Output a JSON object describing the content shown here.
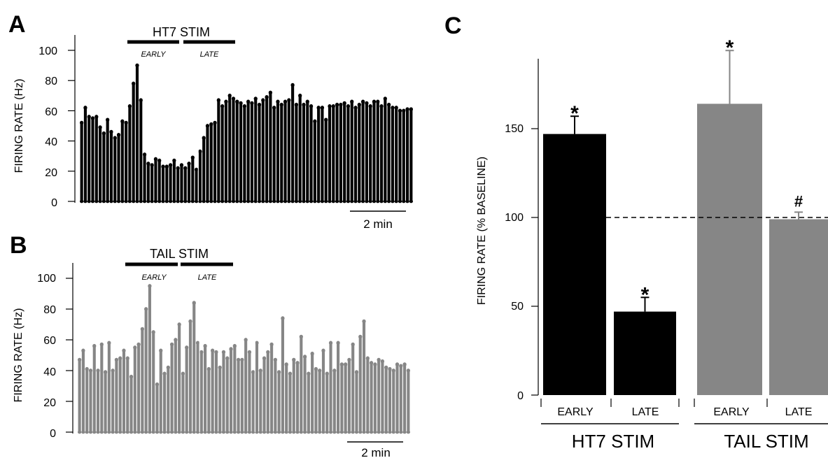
{
  "colors": {
    "ht7": "#000000",
    "tail": "#868686",
    "axis": "#000000",
    "errorbar": "#000000"
  },
  "chart_data": [
    {
      "id": "A",
      "panel_label": "A",
      "type": "bar",
      "stim_label": "HT7 STIM",
      "phase_labels": [
        "EARLY",
        "LATE"
      ],
      "ylabel": "FIRING RATE (Hz)",
      "ylim": [
        0,
        100
      ],
      "yticks": [
        "0",
        "20",
        "40",
        "60",
        "80",
        "100"
      ],
      "scalebar_label": "2 min",
      "dividers_after_bin": [
        32,
        48
      ],
      "color": "#000000",
      "values": [
        52,
        62,
        56,
        55,
        56,
        49,
        45,
        54,
        46,
        42,
        44,
        53,
        52,
        63,
        78,
        90,
        67,
        31,
        25,
        24,
        28,
        27,
        23,
        23,
        24,
        27,
        22,
        24,
        22,
        25,
        29,
        21,
        33,
        42,
        50,
        51,
        52,
        67,
        63,
        66,
        70,
        68,
        66,
        65,
        63,
        66,
        65,
        68,
        64,
        67,
        69,
        72,
        62,
        66,
        64,
        66,
        67,
        77,
        64,
        70,
        64,
        66,
        63,
        53,
        62,
        62,
        54,
        63,
        63,
        64,
        64,
        65,
        63,
        66,
        62,
        64,
        66,
        65,
        63,
        66,
        66,
        63,
        68,
        64,
        62,
        62,
        60,
        60,
        61,
        61
      ]
    },
    {
      "id": "B",
      "panel_label": "B",
      "type": "bar",
      "stim_label": "TAIL STIM",
      "phase_labels": [
        "EARLY",
        "LATE"
      ],
      "ylabel": "FIRING RATE (Hz)",
      "ylim": [
        0,
        100
      ],
      "yticks": [
        "0",
        "20",
        "40",
        "60",
        "80",
        "100"
      ],
      "scalebar_label": "2 min",
      "dividers_after_bin": [
        33,
        48
      ],
      "color": "#868686",
      "values": [
        47,
        53,
        41,
        40,
        56,
        40,
        57,
        39,
        58,
        40,
        47,
        48,
        53,
        48,
        36,
        55,
        57,
        67,
        80,
        95,
        65,
        31,
        53,
        38,
        42,
        57,
        60,
        70,
        38,
        55,
        72,
        84,
        58,
        52,
        56,
        41,
        53,
        52,
        42,
        52,
        48,
        54,
        56,
        47,
        47,
        60,
        52,
        39,
        58,
        40,
        48,
        52,
        57,
        47,
        39,
        74,
        44,
        38,
        47,
        45,
        62,
        49,
        38,
        51,
        41,
        40,
        53,
        38,
        58,
        40,
        58,
        44,
        44,
        47,
        57,
        39,
        62,
        72,
        48,
        45,
        44,
        47,
        46,
        42,
        41,
        40,
        44,
        43,
        44,
        40
      ]
    },
    {
      "id": "C",
      "panel_label": "C",
      "type": "bar",
      "ylabel": "FIRING RATE (% BASELINE)",
      "ylim": [
        0,
        190
      ],
      "yticks": [
        "0",
        "50",
        "100",
        "150"
      ],
      "reference_line": 100,
      "categories": [
        "EARLY",
        "LATE",
        "EARLY",
        "LATE"
      ],
      "groups": [
        "HT7 STIM",
        "TAIL STIM"
      ],
      "values": [
        147,
        47,
        164,
        99
      ],
      "errors": [
        10,
        8,
        30,
        4
      ],
      "markers": [
        "*",
        "*",
        "*",
        "#"
      ],
      "colors": [
        "#000000",
        "#000000",
        "#868686",
        "#868686"
      ]
    }
  ]
}
